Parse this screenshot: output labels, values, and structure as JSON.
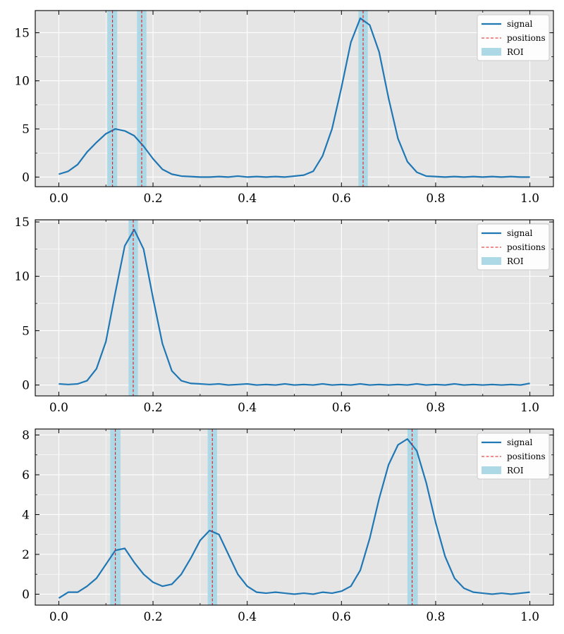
{
  "legend": {
    "signal": "signal",
    "positions": "positions",
    "roi": "ROI"
  },
  "colors": {
    "signal": "#1f77b4",
    "positions": "#e31a1c",
    "roi": "#add8e6",
    "axes_bg": "#e5e5e5",
    "grid": "#ffffff"
  },
  "chart_data": [
    {
      "type": "line",
      "xlim": [
        -0.05,
        1.05
      ],
      "ylim": [
        -1.0,
        17.3
      ],
      "xticks": [
        0.0,
        0.2,
        0.4,
        0.6,
        0.8,
        1.0
      ],
      "xtick_labels": [
        "0.0",
        "0.2",
        "0.4",
        "0.6",
        "0.8",
        "1.0"
      ],
      "yticks": [
        0,
        5,
        10,
        15
      ],
      "ytick_labels": [
        "0",
        "5",
        "10",
        "15"
      ],
      "grid": true,
      "legend_position": "upper right",
      "series": [
        {
          "x": [
            0.0,
            0.02,
            0.04,
            0.06,
            0.08,
            0.1,
            0.12,
            0.14,
            0.16,
            0.18,
            0.2,
            0.22,
            0.24,
            0.26,
            0.28,
            0.3,
            0.32,
            0.34,
            0.36,
            0.38,
            0.4,
            0.42,
            0.44,
            0.46,
            0.48,
            0.5,
            0.52,
            0.54,
            0.56,
            0.58,
            0.6,
            0.62,
            0.64,
            0.66,
            0.68,
            0.7,
            0.72,
            0.74,
            0.76,
            0.78,
            0.8,
            0.82,
            0.84,
            0.86,
            0.88,
            0.9,
            0.92,
            0.94,
            0.96,
            0.98,
            1.0
          ],
          "y": [
            0.3,
            0.6,
            1.3,
            2.6,
            3.6,
            4.5,
            5.0,
            4.8,
            4.3,
            3.2,
            1.9,
            0.8,
            0.3,
            0.1,
            0.05,
            0.0,
            0.0,
            0.05,
            0.0,
            0.1,
            0.0,
            0.05,
            0.0,
            0.05,
            0.0,
            0.1,
            0.2,
            0.6,
            2.2,
            5.0,
            9.3,
            14.0,
            16.5,
            15.8,
            13.0,
            8.2,
            4.0,
            1.6,
            0.5,
            0.1,
            0.05,
            0.0,
            0.05,
            0.0,
            0.05,
            0.0,
            0.05,
            0.0,
            0.05,
            0.0,
            0.0
          ]
        }
      ],
      "positions": [
        0.114,
        0.176,
        0.646
      ],
      "roi": [
        [
          0.103,
          0.124
        ],
        [
          0.166,
          0.186
        ],
        [
          0.636,
          0.656
        ]
      ]
    },
    {
      "type": "line",
      "xlim": [
        -0.05,
        1.05
      ],
      "ylim": [
        -1.0,
        15.2
      ],
      "xticks": [
        0.0,
        0.2,
        0.4,
        0.6,
        0.8,
        1.0
      ],
      "xtick_labels": [
        "0.0",
        "0.2",
        "0.4",
        "0.6",
        "0.8",
        "1.0"
      ],
      "yticks": [
        0,
        5,
        10,
        15
      ],
      "ytick_labels": [
        "0",
        "5",
        "10",
        "15"
      ],
      "grid": true,
      "legend_position": "upper right",
      "series": [
        {
          "x": [
            0.0,
            0.02,
            0.04,
            0.06,
            0.08,
            0.1,
            0.12,
            0.14,
            0.16,
            0.18,
            0.2,
            0.22,
            0.24,
            0.26,
            0.28,
            0.3,
            0.32,
            0.34,
            0.36,
            0.38,
            0.4,
            0.42,
            0.44,
            0.46,
            0.48,
            0.5,
            0.52,
            0.54,
            0.56,
            0.58,
            0.6,
            0.62,
            0.64,
            0.66,
            0.68,
            0.7,
            0.72,
            0.74,
            0.76,
            0.78,
            0.8,
            0.82,
            0.84,
            0.86,
            0.88,
            0.9,
            0.92,
            0.94,
            0.96,
            0.98,
            1.0
          ],
          "y": [
            0.1,
            0.05,
            0.1,
            0.4,
            1.5,
            4.0,
            8.5,
            12.8,
            14.3,
            12.5,
            8.0,
            3.8,
            1.3,
            0.4,
            0.15,
            0.1,
            0.05,
            0.1,
            0.0,
            0.05,
            0.1,
            0.0,
            0.05,
            0.0,
            0.1,
            0.0,
            0.05,
            0.0,
            0.1,
            0.0,
            0.05,
            0.0,
            0.1,
            0.0,
            0.05,
            0.0,
            0.05,
            0.0,
            0.1,
            0.0,
            0.05,
            0.0,
            0.1,
            0.0,
            0.05,
            0.0,
            0.05,
            0.0,
            0.05,
            0.0,
            0.15
          ]
        }
      ],
      "positions": [
        0.158
      ],
      "roi": [
        [
          0.148,
          0.168
        ]
      ]
    },
    {
      "type": "line",
      "xlim": [
        -0.05,
        1.05
      ],
      "ylim": [
        -0.55,
        8.3
      ],
      "xticks": [
        0.0,
        0.2,
        0.4,
        0.6,
        0.8,
        1.0
      ],
      "xtick_labels": [
        "0.0",
        "0.2",
        "0.4",
        "0.6",
        "0.8",
        "1.0"
      ],
      "yticks": [
        0,
        2,
        4,
        6,
        8
      ],
      "ytick_labels": [
        "0",
        "2",
        "4",
        "6",
        "8"
      ],
      "grid": true,
      "legend_position": "upper right",
      "series": [
        {
          "x": [
            0.0,
            0.02,
            0.04,
            0.06,
            0.08,
            0.1,
            0.12,
            0.14,
            0.16,
            0.18,
            0.2,
            0.22,
            0.24,
            0.26,
            0.28,
            0.3,
            0.32,
            0.34,
            0.36,
            0.38,
            0.4,
            0.42,
            0.44,
            0.46,
            0.48,
            0.5,
            0.52,
            0.54,
            0.56,
            0.58,
            0.6,
            0.62,
            0.64,
            0.66,
            0.68,
            0.7,
            0.72,
            0.74,
            0.76,
            0.78,
            0.8,
            0.82,
            0.84,
            0.86,
            0.88,
            0.9,
            0.92,
            0.94,
            0.96,
            0.98,
            1.0
          ],
          "y": [
            -0.2,
            0.1,
            0.1,
            0.4,
            0.8,
            1.5,
            2.2,
            2.3,
            1.6,
            1.0,
            0.6,
            0.4,
            0.5,
            1.0,
            1.8,
            2.7,
            3.2,
            3.0,
            2.0,
            1.0,
            0.4,
            0.1,
            0.05,
            0.1,
            0.05,
            0.0,
            0.05,
            0.0,
            0.1,
            0.05,
            0.15,
            0.4,
            1.2,
            2.8,
            4.8,
            6.5,
            7.5,
            7.8,
            7.2,
            5.6,
            3.6,
            1.9,
            0.8,
            0.3,
            0.1,
            0.05,
            0.0,
            0.05,
            0.0,
            0.05,
            0.1
          ]
        }
      ],
      "positions": [
        0.12,
        0.326,
        0.75
      ],
      "roi": [
        [
          0.109,
          0.131
        ],
        [
          0.316,
          0.336
        ],
        [
          0.74,
          0.762
        ]
      ]
    }
  ]
}
